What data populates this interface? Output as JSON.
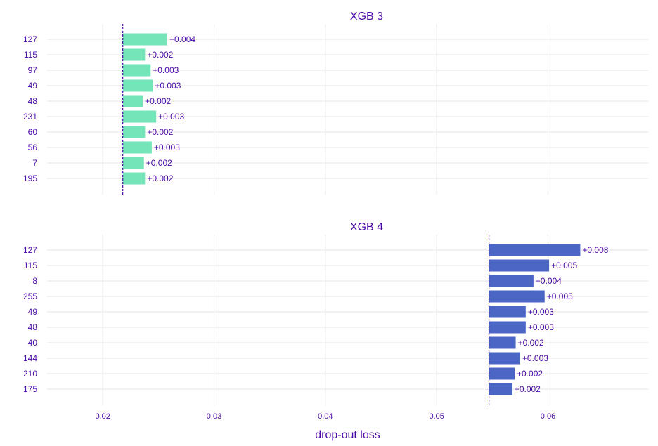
{
  "chart_data": {
    "type": "bar",
    "orientation": "horizontal",
    "xlabel": "drop-out loss",
    "xlim": [
      0.015,
      0.069
    ],
    "x_ticks": [
      "0.02",
      "0.03",
      "0.04",
      "0.05",
      "0.06"
    ],
    "x_tick_values": [
      0.02,
      0.03,
      0.04,
      0.05,
      0.06
    ],
    "grid": true,
    "panels": [
      {
        "title": "XGB 3",
        "baseline": 0.0218,
        "color": "#73e5b9",
        "categories": [
          "127",
          "115",
          "97",
          "49",
          "48",
          "231",
          "60",
          "56",
          "7",
          "195"
        ],
        "values": [
          0.004,
          0.002,
          0.0025,
          0.0027,
          0.0018,
          0.003,
          0.002,
          0.0026,
          0.0019,
          0.002
        ],
        "labels": [
          "+0.004",
          "+0.002",
          "+0.003",
          "+0.003",
          "+0.002",
          "+0.003",
          "+0.002",
          "+0.003",
          "+0.002",
          "+0.002"
        ]
      },
      {
        "title": "XGB 4",
        "baseline": 0.0547,
        "color": "#4c66c6",
        "categories": [
          "127",
          "115",
          "8",
          "255",
          "49",
          "48",
          "40",
          "144",
          "210",
          "175"
        ],
        "values": [
          0.0082,
          0.0054,
          0.004,
          0.005,
          0.0033,
          0.0033,
          0.0024,
          0.0028,
          0.0023,
          0.0021
        ],
        "labels": [
          "+0.008",
          "+0.005",
          "+0.004",
          "+0.005",
          "+0.003",
          "+0.003",
          "+0.002",
          "+0.003",
          "+0.002",
          "+0.002"
        ]
      }
    ]
  },
  "colors": {
    "text": "#4b0aa6",
    "grid": "#ebebeb",
    "baseline_line": "#4b0aa6"
  }
}
